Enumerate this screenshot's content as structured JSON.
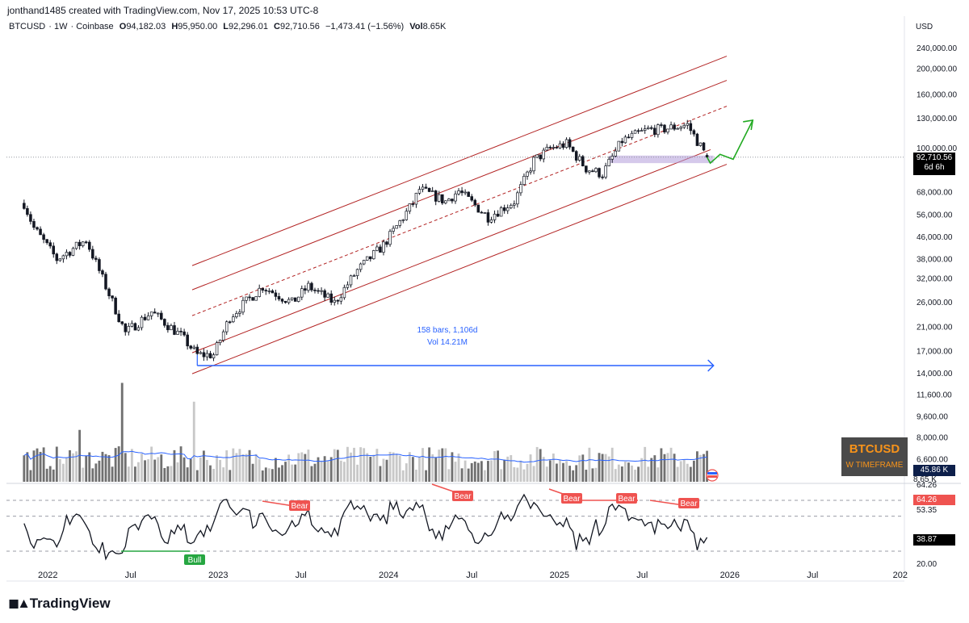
{
  "header": {
    "created_by": "jonthand1485 created with TradingView.com, Nov 17, 2025 10:53 UTC-8"
  },
  "symbol": {
    "name": "BTCUSD",
    "interval": "1W",
    "exchange": "Coinbase",
    "open_label": "O",
    "open": "94,182.03",
    "high_label": "H",
    "high": "95,950.00",
    "low_label": "L",
    "low": "92,296.01",
    "close_label": "C",
    "close": "92,710.56",
    "change": "−1,473.41 (−1.56%)",
    "vol_label": "Vol",
    "volume": "8.65",
    "vol_unit": "K"
  },
  "price_scale": {
    "currency": "USD",
    "ticks": [
      "240,000.00",
      "200,000.00",
      "160,000.00",
      "130,000.00",
      "100,000.00",
      "68,000.00",
      "56,000.00",
      "46,000.00",
      "38,000.00",
      "32,000.00",
      "26,000.00",
      "21,000.00",
      "17,000.00",
      "14,000.00",
      "11,600.00",
      "9,600.00",
      "8,000.00",
      "6,600.00"
    ],
    "last_price": "92,710.56",
    "countdown": "6d 6h",
    "volume_ma_tag": "45.86 K",
    "volume_tag": "8.65 K"
  },
  "rsi_scale": {
    "ticks": [
      "64.26",
      "53.35",
      "20.00"
    ],
    "tag_upper": "64.26",
    "tag_current": "38.87"
  },
  "time_axis": [
    "2022",
    "Jul",
    "2023",
    "Jul",
    "2024",
    "Jul",
    "2025",
    "Jul",
    "2026",
    "Jul",
    "202"
  ],
  "measure": {
    "bars": "158 bars, 1,106d",
    "vol": "Vol 14.21M"
  },
  "rsi_labels": {
    "bull": "Bull",
    "bear": "Bear"
  },
  "badge": {
    "title": "BTCUSD",
    "subtitle": "W TIMEFRAME"
  },
  "brand": {
    "name": "TradingView"
  },
  "colors": {
    "up": "#ffffff",
    "down": "#131722",
    "channel": "#b22222",
    "measure": "#2962ff",
    "projection": "#22aa22",
    "zone": "#b39ddb",
    "volume_up": "#c8c8c8",
    "volume_down": "#707070",
    "volume_ma": "#2962ff",
    "rsi": "#131722",
    "bear": "#ef5350",
    "bull": "#26a641"
  },
  "chart_data": {
    "type": "candlestick",
    "symbol": "BTCUSD",
    "interval": "1W",
    "scale": "log",
    "ylim": [
      6600,
      240000
    ],
    "price_path": [
      {
        "date": "2021-11-15",
        "price": 62000
      },
      {
        "date": "2021-12-06",
        "price": 50000
      },
      {
        "date": "2022-01-24",
        "price": 38000
      },
      {
        "date": "2022-03-28",
        "price": 45000
      },
      {
        "date": "2022-05-09",
        "price": 30000
      },
      {
        "date": "2022-06-20",
        "price": 20000
      },
      {
        "date": "2022-08-15",
        "price": 24000
      },
      {
        "date": "2022-10-17",
        "price": 19500
      },
      {
        "date": "2022-11-21",
        "price": 16500
      },
      {
        "date": "2022-12-26",
        "price": 16500
      },
      {
        "date": "2023-01-30",
        "price": 23000
      },
      {
        "date": "2023-04-10",
        "price": 30000
      },
      {
        "date": "2023-06-12",
        "price": 26000
      },
      {
        "date": "2023-07-17",
        "price": 30000
      },
      {
        "date": "2023-09-11",
        "price": 26000
      },
      {
        "date": "2023-10-30",
        "price": 34500
      },
      {
        "date": "2023-12-25",
        "price": 43000
      },
      {
        "date": "2024-02-26",
        "price": 62000
      },
      {
        "date": "2024-03-11",
        "price": 70000
      },
      {
        "date": "2024-05-06",
        "price": 63000
      },
      {
        "date": "2024-06-03",
        "price": 69000
      },
      {
        "date": "2024-08-05",
        "price": 55000
      },
      {
        "date": "2024-09-30",
        "price": 63000
      },
      {
        "date": "2024-11-11",
        "price": 90000
      },
      {
        "date": "2024-12-16",
        "price": 100000
      },
      {
        "date": "2025-01-20",
        "price": 104000
      },
      {
        "date": "2025-03-03",
        "price": 84000
      },
      {
        "date": "2025-04-07",
        "price": 80000
      },
      {
        "date": "2025-05-19",
        "price": 107000
      },
      {
        "date": "2025-07-14",
        "price": 118000
      },
      {
        "date": "2025-08-11",
        "price": 118000
      },
      {
        "date": "2025-10-06",
        "price": 123000
      },
      {
        "date": "2025-11-17",
        "price": 92710.56
      }
    ],
    "last_bar": {
      "open": 94182.03,
      "high": 95950.0,
      "low": 92296.01,
      "close": 92710.56
    },
    "measure": {
      "from": "2022-11-21",
      "to": "2025-12-01",
      "bars": 158,
      "days": 1106,
      "volume": "14.21M"
    },
    "channel_lines": 5,
    "projection": [
      {
        "date": "2025-11-24",
        "price": 88000
      },
      {
        "date": "2025-12-15",
        "price": 95000
      },
      {
        "date": "2026-01-12",
        "price": 91000
      },
      {
        "date": "2026-02-23",
        "price": 128000
      }
    ],
    "support_zone": {
      "from": "2025-04-21",
      "to": "2025-12-01",
      "low": 88000,
      "high": 94000
    },
    "rsi": {
      "levels": [
        64.26,
        53.35,
        20.0
      ],
      "current": 38.87,
      "divergences": [
        "Bull",
        "Bear",
        "Bear",
        "Bear",
        "Bear",
        "Bear"
      ]
    },
    "volume": {
      "last": "8.65K",
      "ma": "45.86K"
    }
  }
}
